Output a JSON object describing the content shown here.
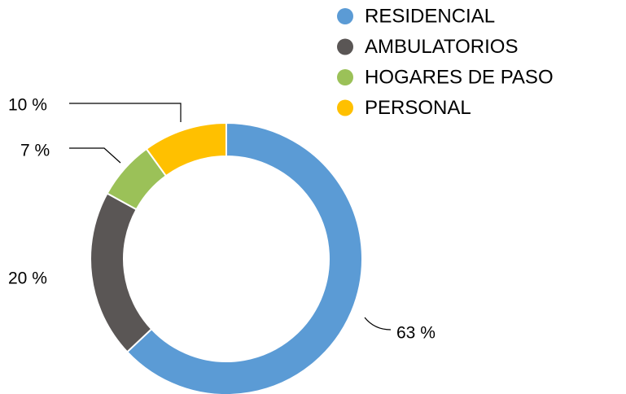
{
  "chart_data": {
    "type": "pie",
    "categories": [
      "RESIDENCIAL",
      "AMBULATORIOS",
      "HOGARES DE PASO",
      "PERSONAL"
    ],
    "values": [
      63,
      20,
      7,
      10
    ],
    "value_labels": [
      "63 %",
      "20 %",
      "7 %",
      "10 %"
    ],
    "colors": [
      "#5b9bd5",
      "#5a5655",
      "#9bc158",
      "#ffc000"
    ],
    "legend": "top-right"
  }
}
